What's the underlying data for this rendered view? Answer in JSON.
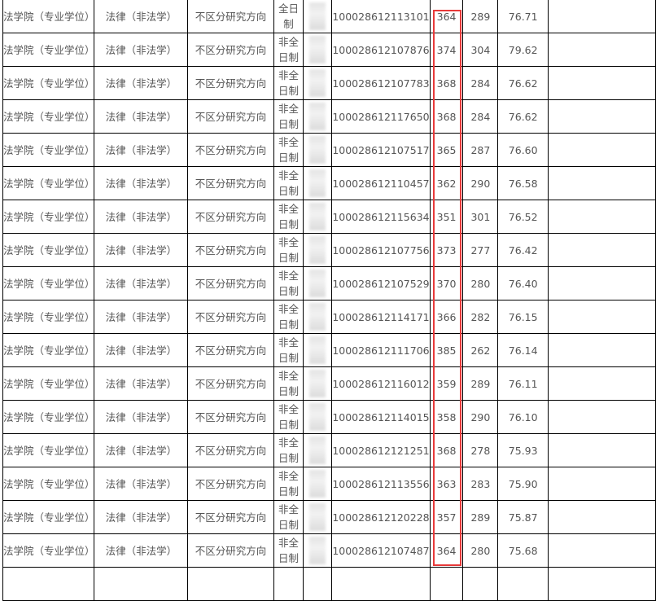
{
  "highlight_color": "#e83a3a",
  "rows": [
    {
      "college": "法学院（专业学位）",
      "major": "法律（非法学）",
      "direction": "不区分研究方向",
      "mode": "全日制",
      "id": "100028612113101",
      "prelim": "364",
      "other": "289",
      "total": "76.71"
    },
    {
      "college": "法学院（专业学位）",
      "major": "法律（非法学）",
      "direction": "不区分研究方向",
      "mode": "非全日制",
      "id": "100028612107876",
      "prelim": "374",
      "other": "304",
      "total": "79.62"
    },
    {
      "college": "法学院（专业学位）",
      "major": "法律（非法学）",
      "direction": "不区分研究方向",
      "mode": "非全日制",
      "id": "100028612107783",
      "prelim": "368",
      "other": "284",
      "total": "76.62"
    },
    {
      "college": "法学院（专业学位）",
      "major": "法律（非法学）",
      "direction": "不区分研究方向",
      "mode": "非全日制",
      "id": "100028612117650",
      "prelim": "368",
      "other": "284",
      "total": "76.62"
    },
    {
      "college": "法学院（专业学位）",
      "major": "法律（非法学）",
      "direction": "不区分研究方向",
      "mode": "非全日制",
      "id": "100028612107517",
      "prelim": "365",
      "other": "287",
      "total": "76.60"
    },
    {
      "college": "法学院（专业学位）",
      "major": "法律（非法学）",
      "direction": "不区分研究方向",
      "mode": "非全日制",
      "id": "100028612110457",
      "prelim": "362",
      "other": "290",
      "total": "76.58"
    },
    {
      "college": "法学院（专业学位）",
      "major": "法律（非法学）",
      "direction": "不区分研究方向",
      "mode": "非全日制",
      "id": "100028612115634",
      "prelim": "351",
      "other": "301",
      "total": "76.52"
    },
    {
      "college": "法学院（专业学位）",
      "major": "法律（非法学）",
      "direction": "不区分研究方向",
      "mode": "非全日制",
      "id": "100028612107756",
      "prelim": "373",
      "other": "277",
      "total": "76.42"
    },
    {
      "college": "法学院（专业学位）",
      "major": "法律（非法学）",
      "direction": "不区分研究方向",
      "mode": "非全日制",
      "id": "100028612107529",
      "prelim": "370",
      "other": "280",
      "total": "76.40"
    },
    {
      "college": "法学院（专业学位）",
      "major": "法律（非法学）",
      "direction": "不区分研究方向",
      "mode": "非全日制",
      "id": "100028612114171",
      "prelim": "366",
      "other": "282",
      "total": "76.15"
    },
    {
      "college": "法学院（专业学位）",
      "major": "法律（非法学）",
      "direction": "不区分研究方向",
      "mode": "非全日制",
      "id": "100028612111706",
      "prelim": "385",
      "other": "262",
      "total": "76.14"
    },
    {
      "college": "法学院（专业学位）",
      "major": "法律（非法学）",
      "direction": "不区分研究方向",
      "mode": "非全日制",
      "id": "100028612116012",
      "prelim": "359",
      "other": "289",
      "total": "76.11"
    },
    {
      "college": "法学院（专业学位）",
      "major": "法律（非法学）",
      "direction": "不区分研究方向",
      "mode": "非全日制",
      "id": "100028612114015",
      "prelim": "358",
      "other": "290",
      "total": "76.10"
    },
    {
      "college": "法学院（专业学位）",
      "major": "法律（非法学）",
      "direction": "不区分研究方向",
      "mode": "非全日制",
      "id": "100028612121251",
      "prelim": "368",
      "other": "278",
      "total": "75.93"
    },
    {
      "college": "法学院（专业学位）",
      "major": "法律（非法学）",
      "direction": "不区分研究方向",
      "mode": "非全日制",
      "id": "100028612113556",
      "prelim": "363",
      "other": "283",
      "total": "75.90"
    },
    {
      "college": "法学院（专业学位）",
      "major": "法律（非法学）",
      "direction": "不区分研究方向",
      "mode": "非全日制",
      "id": "100028612120228",
      "prelim": "357",
      "other": "289",
      "total": "75.87"
    },
    {
      "college": "法学院（专业学位）",
      "major": "法律（非法学）",
      "direction": "不区分研究方向",
      "mode": "非全日制",
      "id": "100028612107487",
      "prelim": "364",
      "other": "280",
      "total": "75.68"
    }
  ]
}
